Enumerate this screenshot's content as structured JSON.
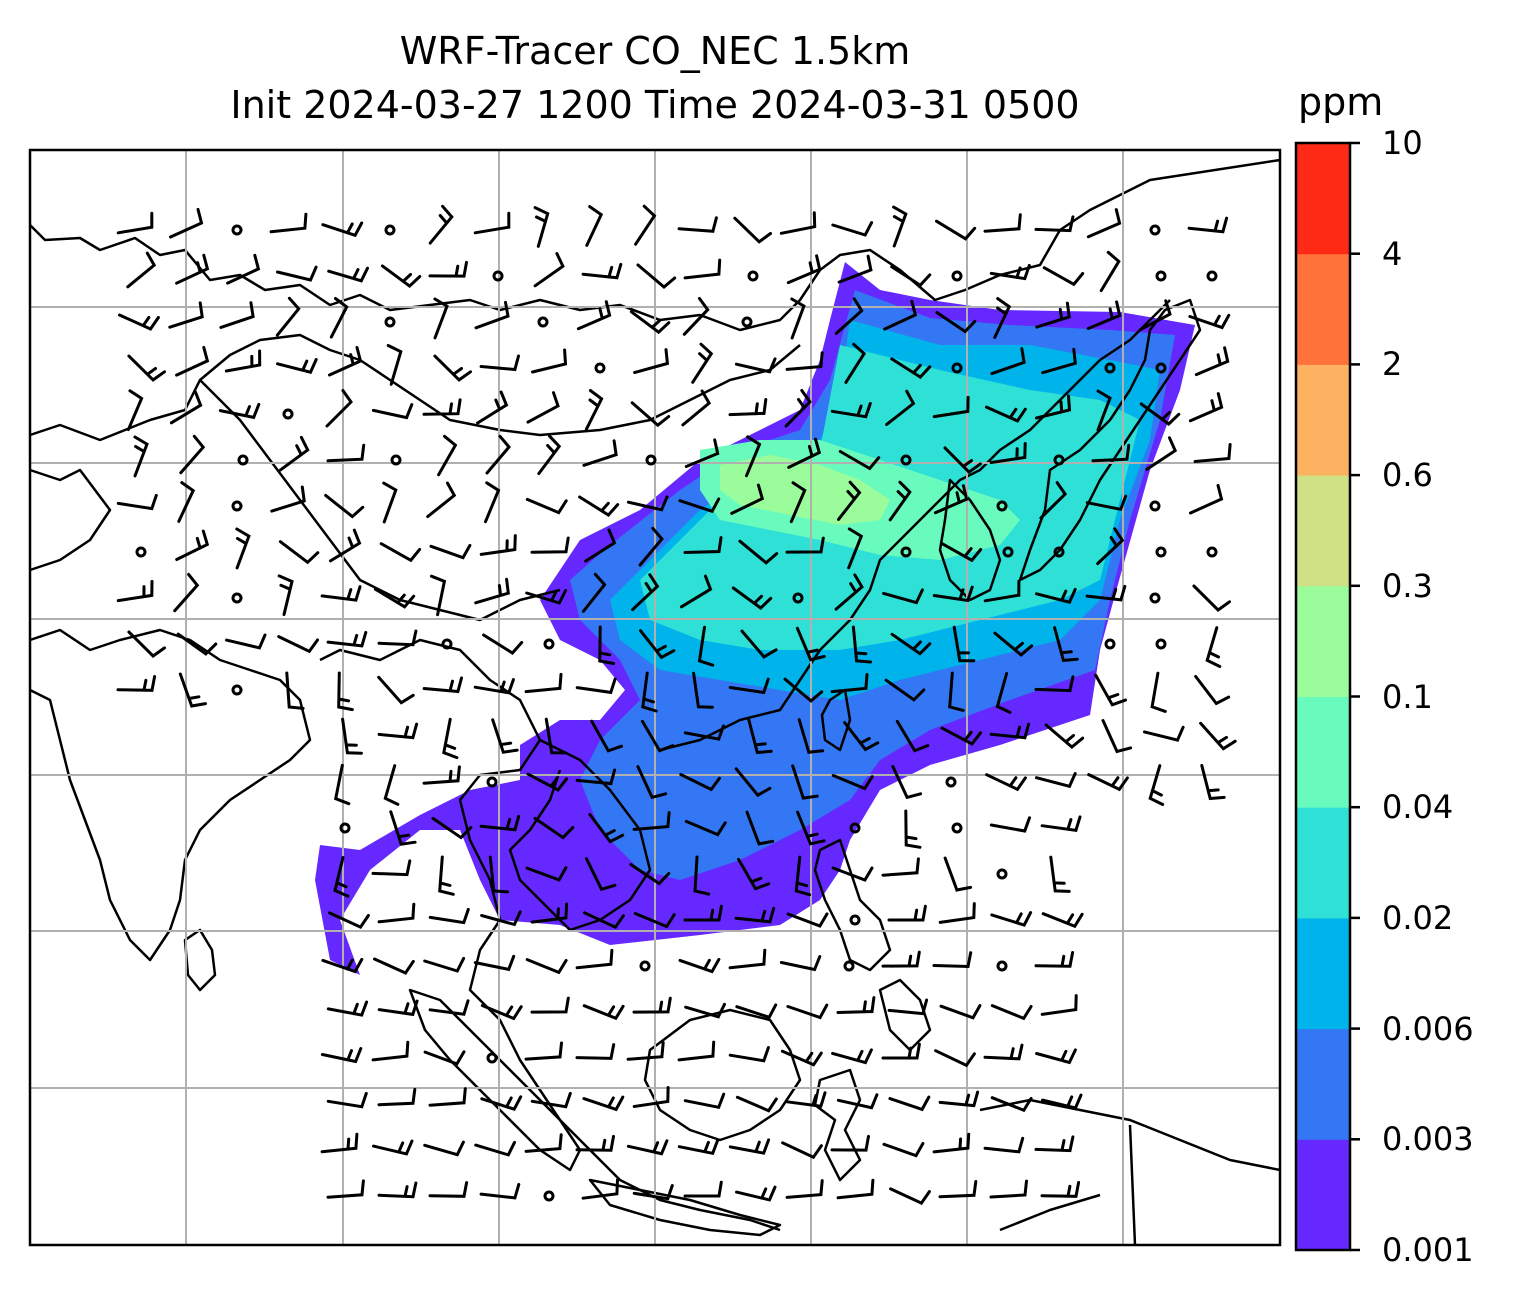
{
  "title_line1": "WRF-Tracer CO_NEC 1.5km",
  "title_line2": "Init 2024-03-27 1200 Time 2024-03-31 0500",
  "colorbar": {
    "unit": "ppm",
    "levels": [
      "0.001",
      "0.003",
      "0.006",
      "0.02",
      "0.04",
      "0.1",
      "0.3",
      "0.6",
      "2",
      "4",
      "10"
    ],
    "colors": [
      "#6528ff",
      "#3477f4",
      "#00b3ea",
      "#2ee0d6",
      "#69fbbd",
      "#9afc9a",
      "#cfe185",
      "#fdb262",
      "#ff7239",
      "#ff2a16"
    ]
  },
  "map": {
    "feature": "CO_NEC tracer concentration with wind barbs",
    "gridlines": true
  }
}
